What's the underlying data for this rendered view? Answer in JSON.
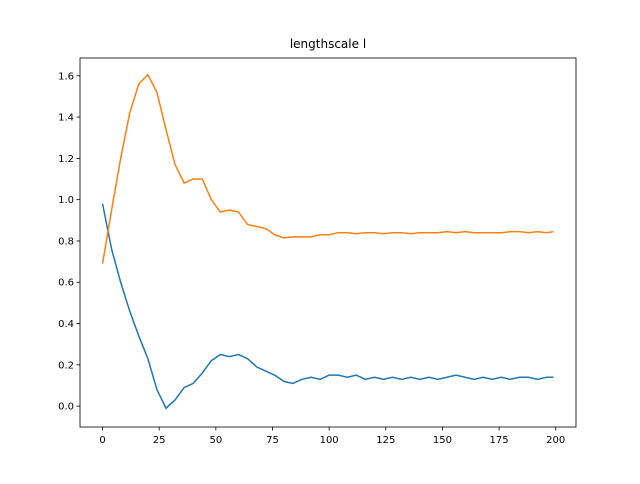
{
  "chart_data": {
    "type": "line",
    "title": "lengthscale l",
    "x": [
      0,
      4,
      8,
      12,
      16,
      20,
      24,
      28,
      32,
      36,
      40,
      44,
      48,
      52,
      56,
      60,
      64,
      68,
      72,
      76,
      80,
      84,
      88,
      92,
      96,
      100,
      104,
      108,
      112,
      116,
      120,
      124,
      128,
      132,
      136,
      140,
      144,
      148,
      152,
      156,
      160,
      164,
      168,
      172,
      176,
      180,
      184,
      188,
      192,
      196,
      199
    ],
    "series": [
      {
        "color": "#1f77b4",
        "values": [
          0.98,
          0.76,
          0.6,
          0.46,
          0.34,
          0.23,
          0.08,
          -0.01,
          0.03,
          0.09,
          0.11,
          0.16,
          0.22,
          0.25,
          0.24,
          0.25,
          0.23,
          0.19,
          0.17,
          0.15,
          0.12,
          0.11,
          0.13,
          0.14,
          0.13,
          0.15,
          0.15,
          0.14,
          0.15,
          0.13,
          0.14,
          0.13,
          0.14,
          0.13,
          0.14,
          0.13,
          0.14,
          0.13,
          0.14,
          0.15,
          0.14,
          0.13,
          0.14,
          0.13,
          0.14,
          0.13,
          0.14,
          0.14,
          0.13,
          0.14,
          0.14
        ]
      },
      {
        "color": "#ff7f0e",
        "values": [
          0.69,
          0.95,
          1.2,
          1.42,
          1.56,
          1.605,
          1.52,
          1.34,
          1.17,
          1.08,
          1.1,
          1.1,
          1.0,
          0.94,
          0.95,
          0.94,
          0.88,
          0.87,
          0.86,
          0.83,
          0.815,
          0.82,
          0.82,
          0.82,
          0.83,
          0.83,
          0.84,
          0.84,
          0.835,
          0.84,
          0.84,
          0.835,
          0.84,
          0.84,
          0.835,
          0.84,
          0.84,
          0.84,
          0.845,
          0.84,
          0.845,
          0.84,
          0.84,
          0.84,
          0.84,
          0.845,
          0.845,
          0.84,
          0.845,
          0.84,
          0.845
        ]
      }
    ],
    "xlim": [
      -9.95,
      208.95
    ],
    "ylim": [
      -0.101,
      1.686
    ],
    "xticks": [
      0,
      25,
      50,
      75,
      100,
      125,
      150,
      175,
      200
    ],
    "yticks": [
      {
        "value": 0,
        "label": "0.0"
      },
      0.2,
      0.4,
      0.6,
      0.8,
      {
        "value": 1,
        "label": "1.0"
      },
      1.2,
      1.4,
      1.6
    ]
  }
}
